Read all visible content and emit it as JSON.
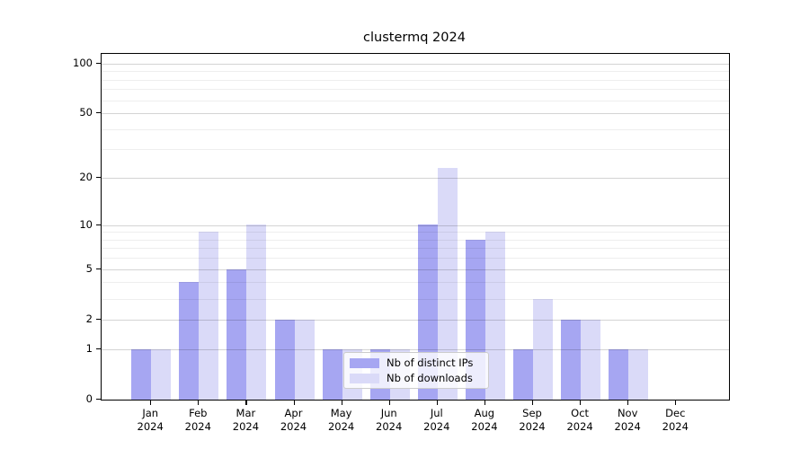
{
  "chart_data": {
    "type": "bar",
    "title": "clustermq 2024",
    "categories": [
      "Jan",
      "Feb",
      "Mar",
      "Apr",
      "May",
      "Jun",
      "Jul",
      "Aug",
      "Sep",
      "Oct",
      "Nov",
      "Dec"
    ],
    "x_year_label": "2024",
    "series": [
      {
        "name": "Nb of distinct IPs",
        "color": "#a6a6f2",
        "values": [
          1,
          4,
          5,
          2,
          1,
          1,
          10,
          8,
          1,
          2,
          1,
          0
        ]
      },
      {
        "name": "Nb of downloads",
        "color": "#dadaf8",
        "values": [
          1,
          9,
          10,
          2,
          1,
          1,
          23,
          9,
          3,
          2,
          1,
          0
        ]
      }
    ],
    "y_axis": {
      "scale": "log1p",
      "major_ticks": [
        0,
        1,
        2,
        5,
        10,
        20,
        50,
        100
      ],
      "minor_ticks": [
        3,
        4,
        6,
        7,
        8,
        9,
        30,
        40,
        60,
        70,
        80,
        90
      ],
      "ylim": [
        0,
        114
      ]
    },
    "legend": {
      "position": "lower-center-inside"
    },
    "grid": true
  }
}
